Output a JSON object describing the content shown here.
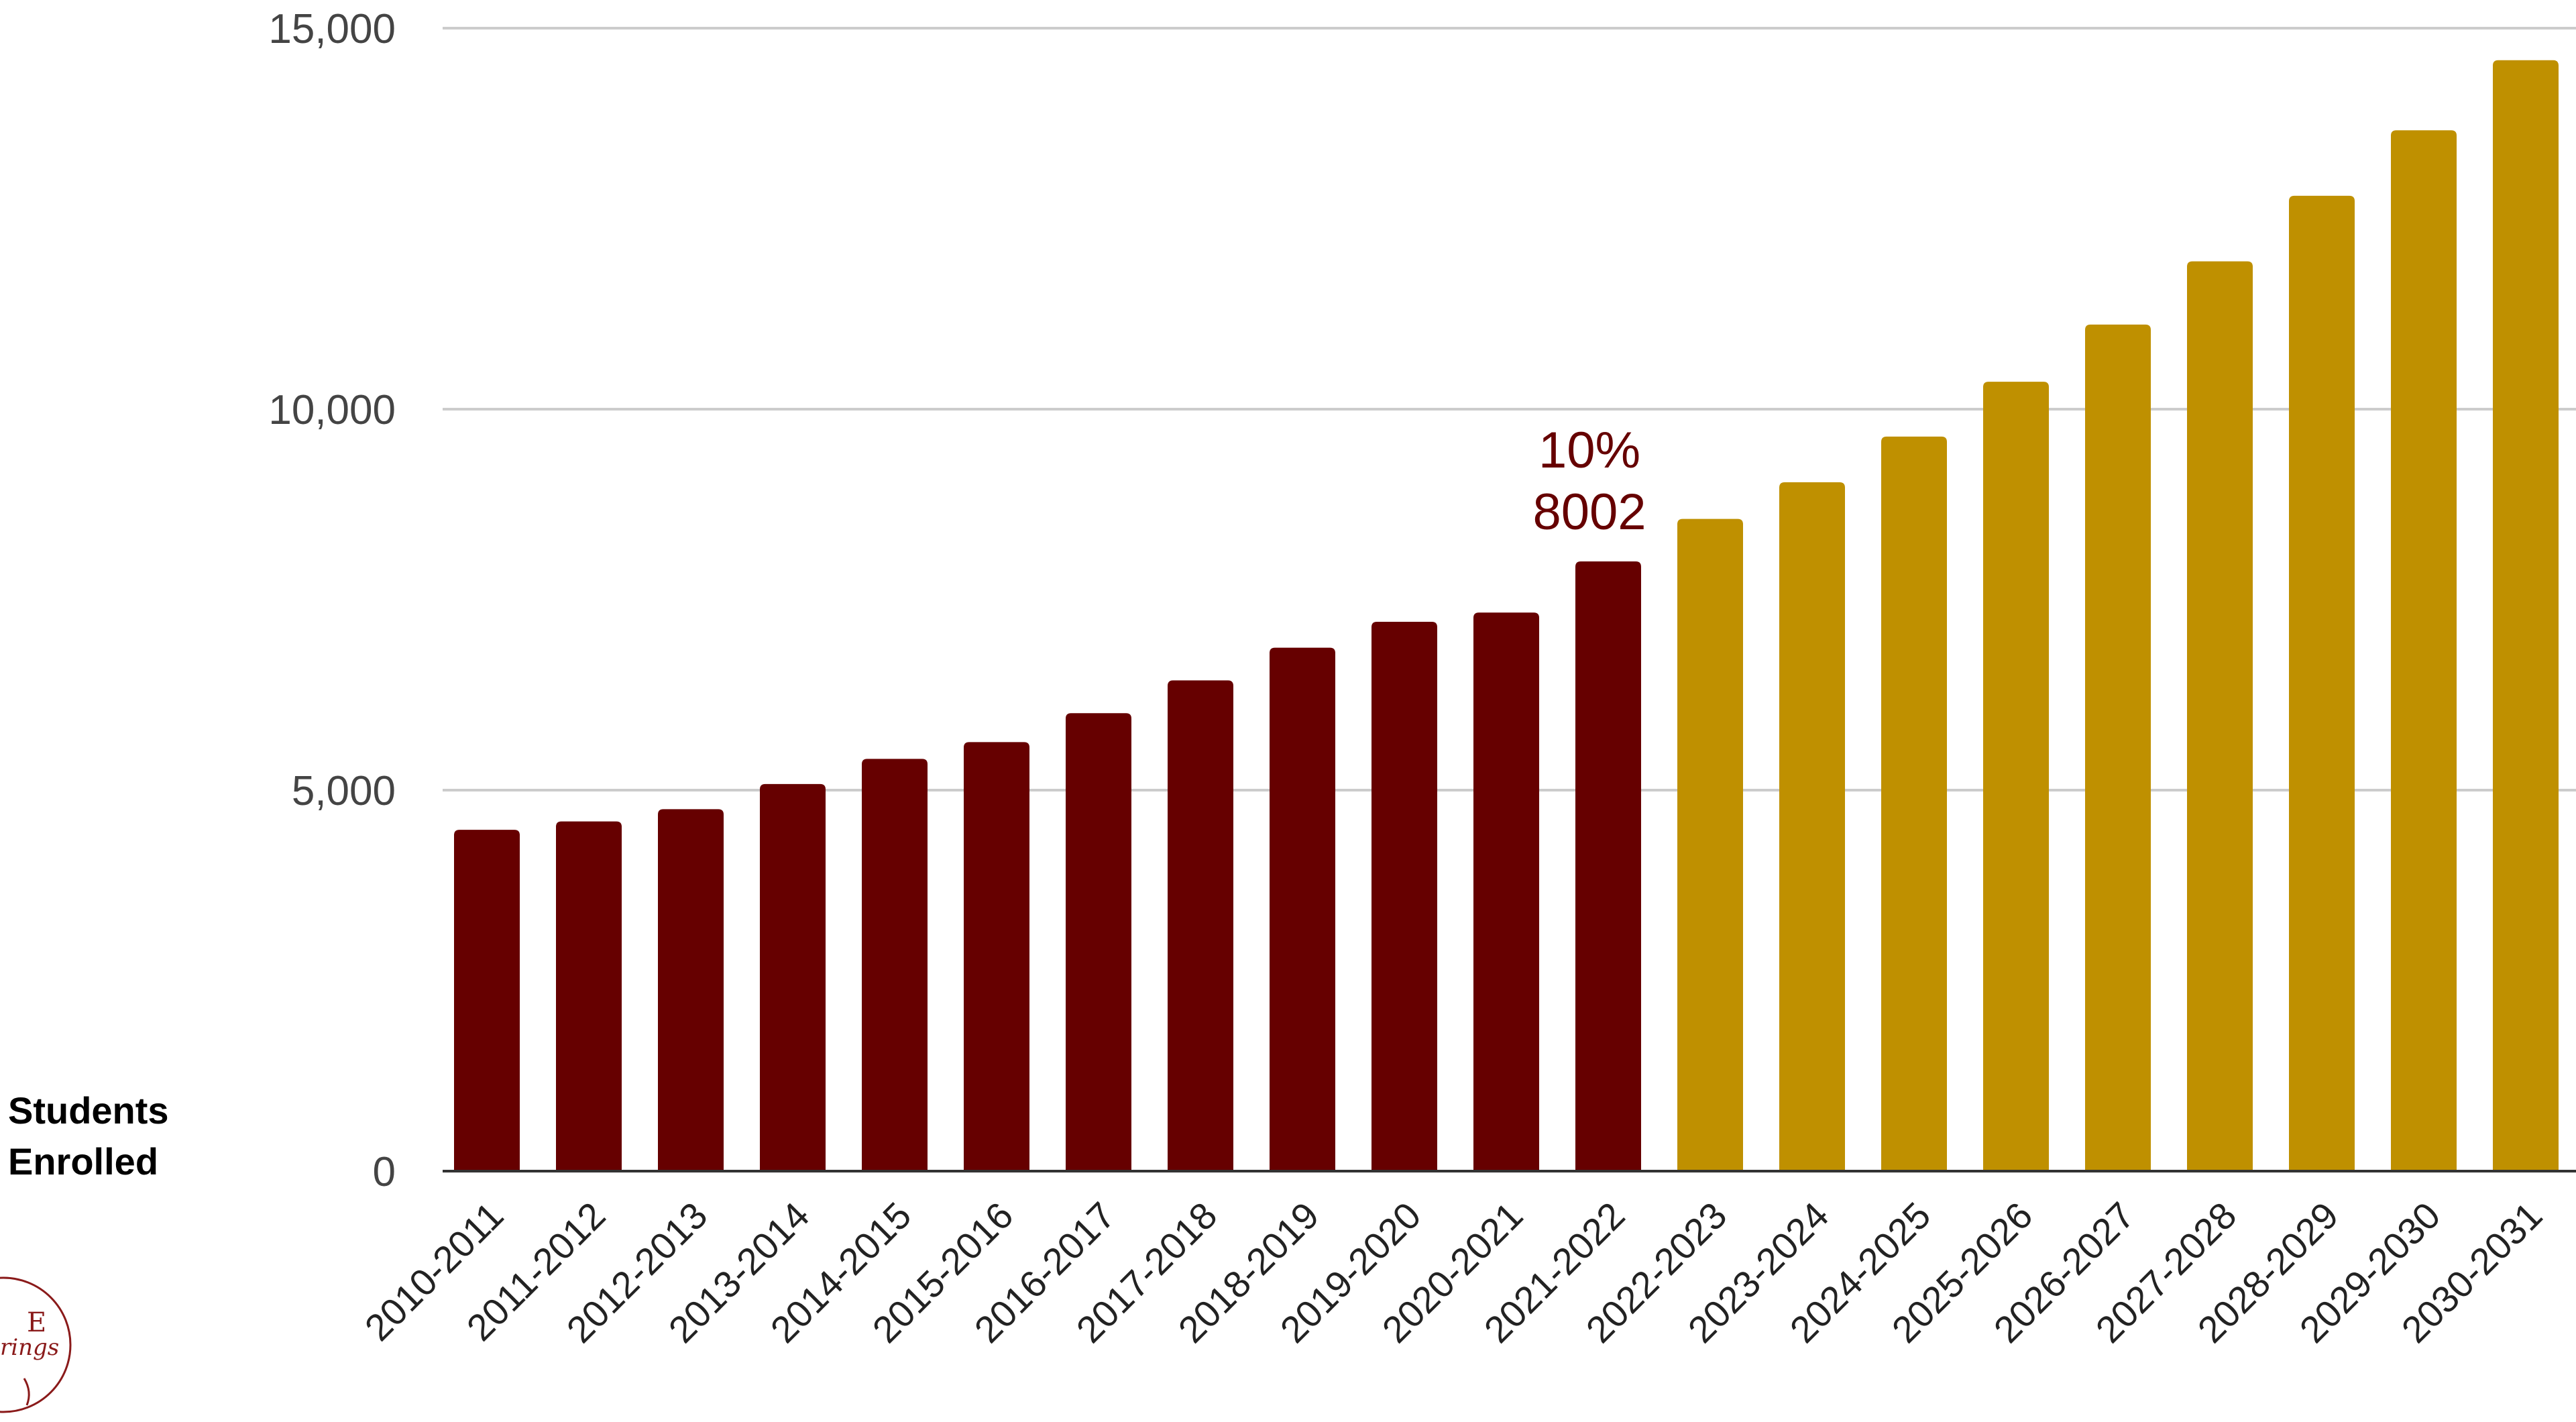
{
  "colors": {
    "actual": "#660000",
    "projected": "#BF9000",
    "grid": "#cccccc",
    "axis": "#333333",
    "annotation": "#660000",
    "text": "#444444"
  },
  "y_axis_label_lines": [
    "Students",
    "Enrolled"
  ],
  "annotation": {
    "line1": "10%",
    "line2": "8002",
    "category": "2021-2022"
  },
  "logo": {
    "icon": "seal-logo-icon",
    "text_fragments": [
      "E",
      "rings"
    ]
  },
  "chart_data": {
    "type": "bar",
    "title": "",
    "xlabel": "",
    "ylabel": "Students Enrolled",
    "ylim": [
      0,
      15000
    ],
    "yticks": [
      0,
      5000,
      10000,
      15000
    ],
    "ytick_labels": [
      "0",
      "5,000",
      "10,000",
      "15,000"
    ],
    "grid": true,
    "categories": [
      "2010-2011",
      "2011-2012",
      "2012-2013",
      "2013-2014",
      "2014-2015",
      "2015-2016",
      "2016-2017",
      "2017-2018",
      "2018-2019",
      "2019-2020",
      "2020-2021",
      "2021-2022",
      "2022-2023",
      "2023-2024",
      "2024-2025",
      "2025-2026",
      "2026-2027",
      "2027-2028",
      "2028-2029",
      "2029-2030",
      "2030-2031"
    ],
    "values": [
      4480,
      4590,
      4750,
      5080,
      5410,
      5630,
      6010,
      6440,
      6870,
      7210,
      7330,
      8002,
      8560,
      9040,
      9640,
      10360,
      11110,
      11940,
      12800,
      13660,
      14580
    ],
    "bar_groups": [
      "actual",
      "actual",
      "actual",
      "actual",
      "actual",
      "actual",
      "actual",
      "actual",
      "actual",
      "actual",
      "actual",
      "actual",
      "projected",
      "projected",
      "projected",
      "projected",
      "projected",
      "projected",
      "projected",
      "projected",
      "projected"
    ]
  }
}
